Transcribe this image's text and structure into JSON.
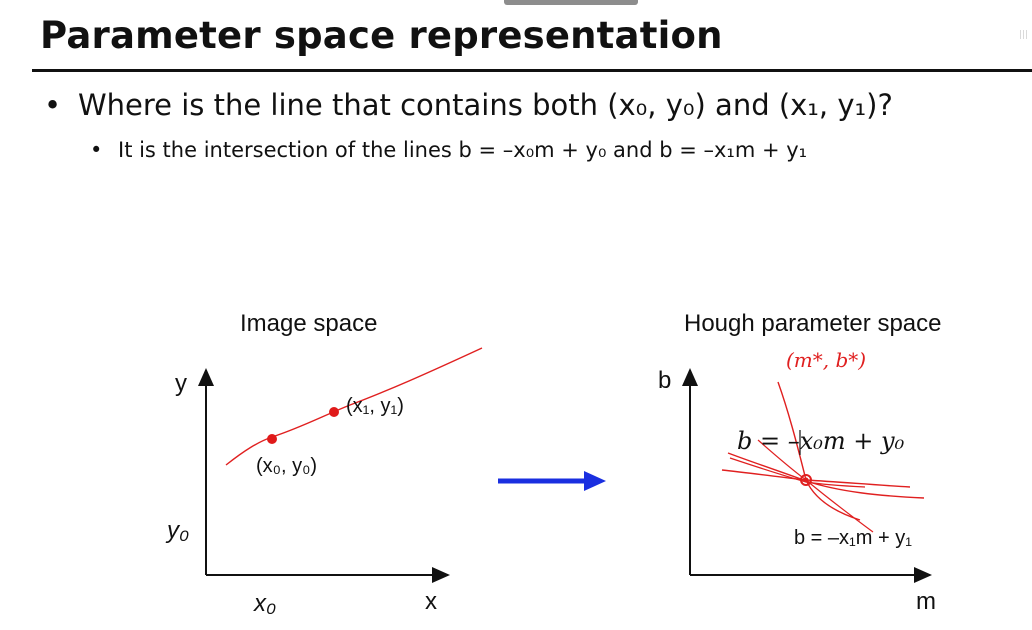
{
  "slide": {
    "title": "Parameter space representation",
    "bullet1": "Where is the line that contains both (x₀, y₀) and (x₁, y₁)?",
    "bullet2": "It is the intersection of the lines b = –x₀m + y₀ and b = –x₁m + y₁"
  },
  "image_space": {
    "title": "Image space",
    "y_axis": "y",
    "x_axis": "x",
    "y0_tick": "y₀",
    "x0_tick": "x₀",
    "point0_label": "(x₀, y₀)",
    "point1_label": "(x₁, y₁)"
  },
  "hough_space": {
    "title": "Hough parameter space",
    "b_axis": "b",
    "m_axis": "m",
    "handwritten_note": "(m*, b*)",
    "line0_label": "b = –x₀m + y₀",
    "line1_label": "b = –x₁m + y₁"
  },
  "colors": {
    "arrow": "#1a2fe0",
    "points": "#e01a1a",
    "ink": "#e02020"
  }
}
